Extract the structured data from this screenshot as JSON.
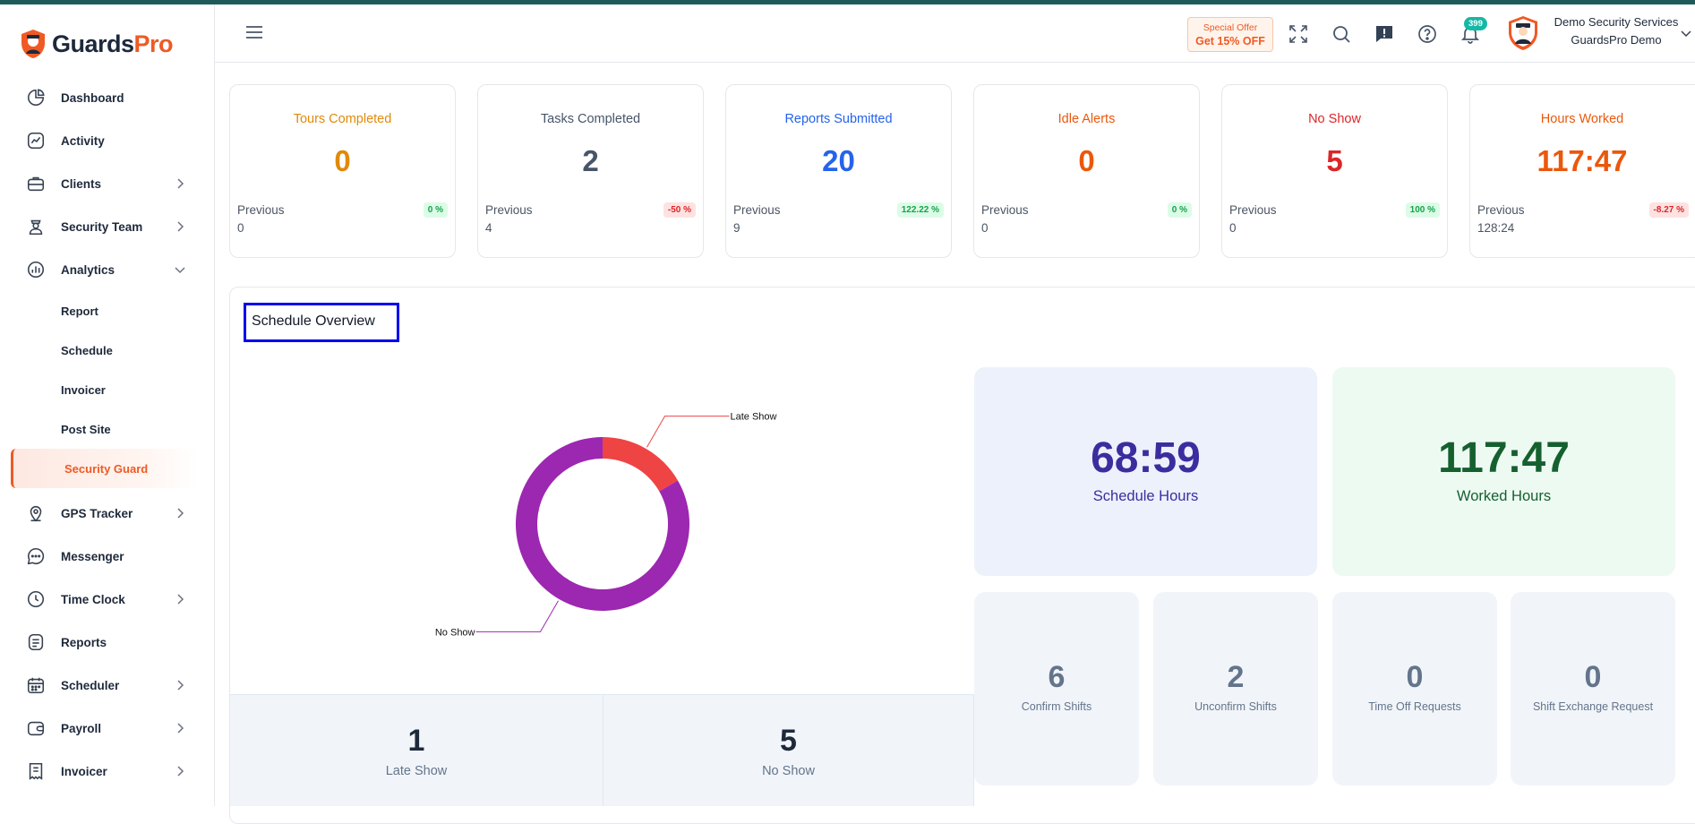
{
  "brand": {
    "name_part1": "Guards",
    "name_part2": "Pro",
    "accent": "#ef5a24"
  },
  "sidebar": {
    "items": [
      {
        "label": "Dashboard",
        "icon": "dashboard-pie-icon"
      },
      {
        "label": "Activity",
        "icon": "activity-chart-icon"
      },
      {
        "label": "Clients",
        "icon": "briefcase-icon"
      },
      {
        "label": "Security Team",
        "icon": "guard-icon"
      },
      {
        "label": "Analytics",
        "icon": "analytics-icon"
      },
      {
        "label": "GPS Tracker",
        "icon": "map-pin-icon"
      },
      {
        "label": "Messenger",
        "icon": "chat-icon"
      },
      {
        "label": "Time Clock",
        "icon": "clock-icon"
      },
      {
        "label": "Reports",
        "icon": "document-icon"
      },
      {
        "label": "Scheduler",
        "icon": "calendar-icon"
      },
      {
        "label": "Payroll",
        "icon": "wallet-icon"
      },
      {
        "label": "Invoicer",
        "icon": "receipt-icon"
      }
    ],
    "analytics_sub": [
      {
        "label": "Report"
      },
      {
        "label": "Schedule"
      },
      {
        "label": "Invoicer"
      },
      {
        "label": "Post Site"
      },
      {
        "label": "Security Guard",
        "active": true
      }
    ]
  },
  "header": {
    "offer_line1": "Special Offer",
    "offer_line2": "Get 15% OFF",
    "notification_count": "399",
    "company": "Demo Security Services",
    "account": "GuardsPro Demo"
  },
  "stats": [
    {
      "title": "Tours Completed",
      "value": "0",
      "prev_label": "Previous",
      "prev_value": "0",
      "pct": "0 %",
      "trend": "up",
      "color": "#e08a0b"
    },
    {
      "title": "Tasks Completed",
      "value": "2",
      "prev_label": "Previous",
      "prev_value": "4",
      "pct": "-50 %",
      "trend": "down",
      "color": "#475569"
    },
    {
      "title": "Reports Submitted",
      "value": "20",
      "prev_label": "Previous",
      "prev_value": "9",
      "pct": "122.22 %",
      "trend": "up",
      "color": "#2563eb"
    },
    {
      "title": "Idle Alerts",
      "value": "0",
      "prev_label": "Previous",
      "prev_value": "0",
      "pct": "0 %",
      "trend": "up",
      "color": "#ea580c"
    },
    {
      "title": "No Show",
      "value": "5",
      "prev_label": "Previous",
      "prev_value": "0",
      "pct": "100 %",
      "trend": "up",
      "color": "#dc2626"
    },
    {
      "title": "Hours Worked",
      "value": "117:47",
      "prev_label": "Previous",
      "prev_value": "128:24",
      "pct": "-8.27 %",
      "trend": "down",
      "color": "#ea580c"
    }
  ],
  "schedule": {
    "title": "Schedule Overview",
    "donut": {
      "segments": [
        {
          "label": "Late Show",
          "value": 1,
          "color": "#ef4444"
        },
        {
          "label": "No Show",
          "value": 5,
          "color": "#9c27b0"
        }
      ]
    },
    "bottom_cards": [
      {
        "value": "1",
        "label": "Late Show"
      },
      {
        "value": "5",
        "label": "No Show"
      }
    ],
    "schedule_hours": {
      "value": "68:59",
      "label": "Schedule Hours"
    },
    "worked_hours": {
      "value": "117:47",
      "label": "Worked Hours"
    },
    "small_cards": [
      {
        "value": "6",
        "label": "Confirm Shifts"
      },
      {
        "value": "2",
        "label": "Unconfirm Shifts"
      },
      {
        "value": "0",
        "label": "Time Off Requests"
      },
      {
        "value": "0",
        "label": "Shift Exchange Request"
      }
    ]
  }
}
